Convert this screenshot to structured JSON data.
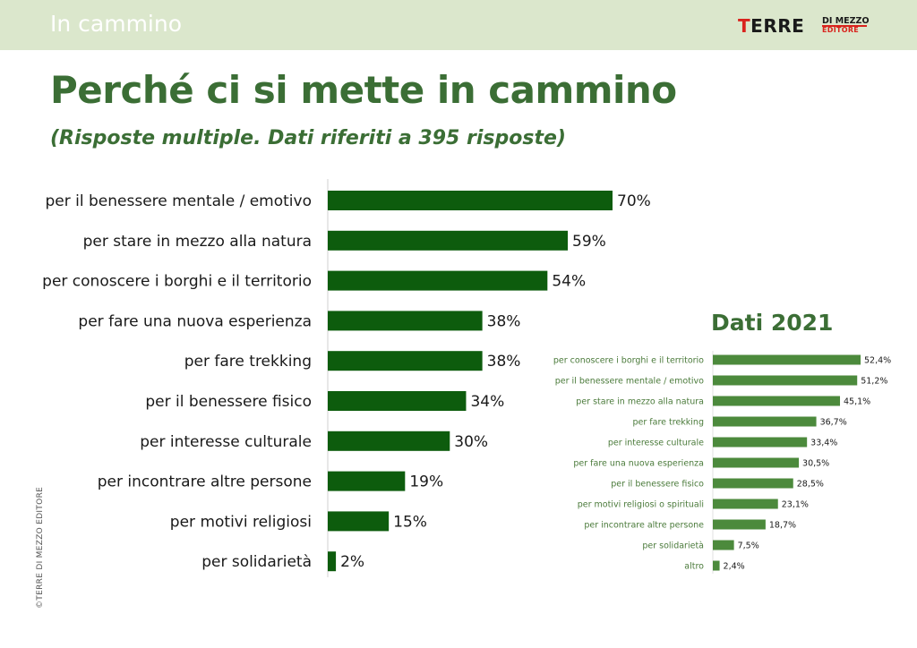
{
  "header": {
    "section_title": "In cammino",
    "logo_text_main": "TERRE",
    "logo_text_sub1": "DI MEZZO",
    "logo_text_sub2": "EDITORE"
  },
  "page": {
    "title": "Perché ci si mette in cammino",
    "subtitle": "(Risposte multiple. Dati riferiti a 395 risposte)",
    "copyright": "©TERRE DI MEZZO EDITORE"
  },
  "colors": {
    "bar_main": "#0d5c0d",
    "bar_2021": "#4c8a3c",
    "accent_green": "#3b6e35",
    "topbar": "#dbe7cc",
    "logo_red": "#d9231d"
  },
  "chart_data": [
    {
      "type": "bar",
      "orientation": "horizontal",
      "title": "",
      "categories": [
        "per il benessere mentale / emotivo",
        "per stare in mezzo alla natura",
        "per conoscere i borghi e il territorio",
        "per fare una nuova esperienza",
        "per fare trekking",
        "per il benessere fisico",
        "per interesse culturale",
        "per incontrare altre persone",
        "per motivi religiosi",
        "per solidarietà"
      ],
      "values": [
        70,
        59,
        54,
        38,
        38,
        34,
        30,
        19,
        15,
        2
      ],
      "value_labels": [
        "70%",
        "59%",
        "54%",
        "38%",
        "38%",
        "34%",
        "30%",
        "19%",
        "15%",
        "2%"
      ],
      "unit": "%"
    },
    {
      "type": "bar",
      "orientation": "horizontal",
      "title": "Dati 2021",
      "categories": [
        "per conoscere i borghi e il territorio",
        "per il benessere mentale / emotivo",
        "per stare in mezzo alla natura",
        "per fare trekking",
        "per interesse culturale",
        "per fare una nuova esperienza",
        "per il benessere fisico",
        "per motivi religiosi o spirituali",
        "per incontrare altre persone",
        "per solidarietà",
        "altro"
      ],
      "values": [
        52.4,
        51.2,
        45.1,
        36.7,
        33.4,
        30.5,
        28.5,
        23.1,
        18.7,
        7.5,
        2.4
      ],
      "value_labels": [
        "52,4%",
        "51,2%",
        "45,1%",
        "36,7%",
        "33,4%",
        "30,5%",
        "28,5%",
        "23,1%",
        "18,7%",
        "7,5%",
        "2,4%"
      ],
      "unit": "%"
    }
  ]
}
